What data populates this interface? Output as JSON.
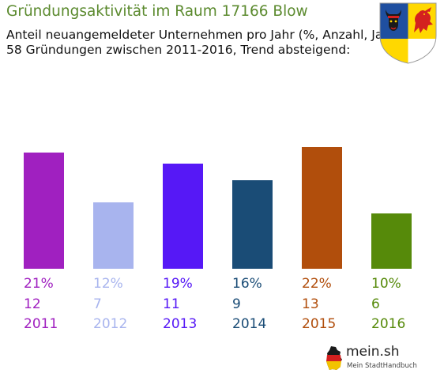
{
  "header": {
    "title": "Gründungsaktivität im Raum 17166 Blow",
    "subtitle_line1": "Anteil neuangemeldeter Unternehmen pro Jahr (%, Anzahl, Jahr)",
    "subtitle_line2": "58 Gründungen zwischen 2011-2016, Trend absteigend:"
  },
  "crest": {
    "icons": [
      "bull-head-icon",
      "griffin-icon"
    ],
    "colors": {
      "left_field": "#1f4fa0",
      "right_field": "#ffd800",
      "bottom_left": "#ffd800",
      "bottom_right": "#ffffff",
      "bull": "#1a1a1a",
      "griffin": "#d4201f"
    }
  },
  "chart_data": {
    "type": "bar",
    "categories": [
      "2011",
      "2012",
      "2013",
      "2014",
      "2015",
      "2016"
    ],
    "values": [
      21,
      12,
      19,
      16,
      22,
      10
    ],
    "counts": [
      12,
      7,
      11,
      9,
      13,
      6
    ],
    "percent_labels": [
      "21%",
      "12%",
      "19%",
      "16%",
      "22%",
      "10%"
    ],
    "colors": [
      "#a020c0",
      "#a8b4ee",
      "#5618f6",
      "#1a4c76",
      "#b14e0c",
      "#568a0a"
    ],
    "ylim": [
      0,
      22
    ],
    "grid": false,
    "legend": "none"
  },
  "brand": {
    "name": "mein.sh",
    "tagline": "Mein StadtHandbuch",
    "icon": "germany-map-icon"
  }
}
